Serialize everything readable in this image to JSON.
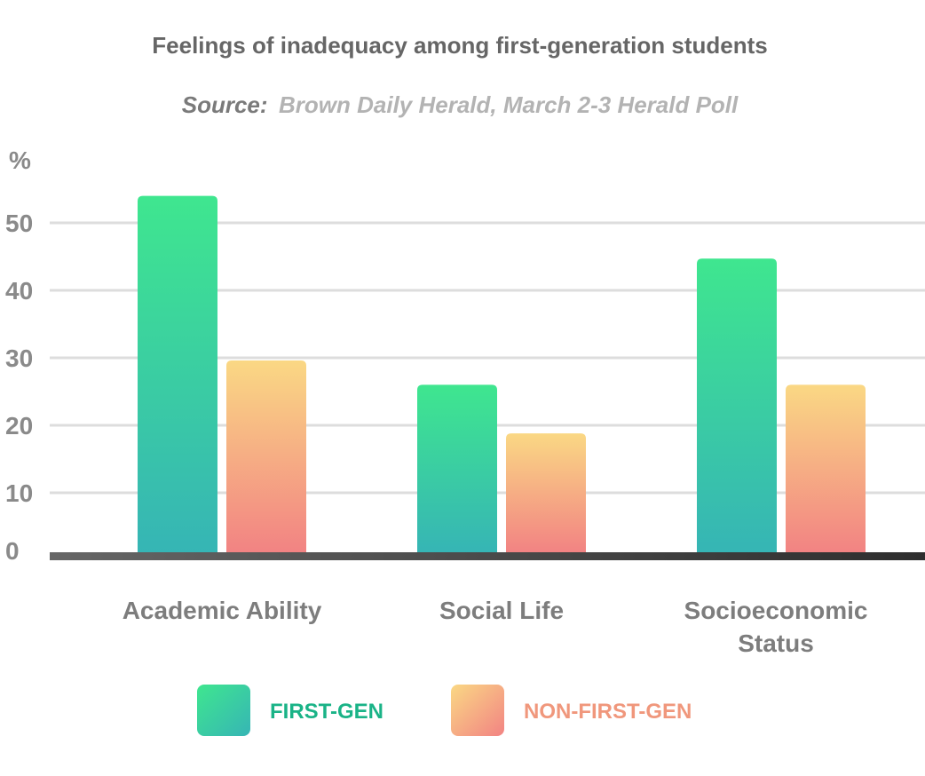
{
  "colors": {
    "first_gen_top": "#3fe68f",
    "first_gen_bottom": "#36b5b5",
    "non_first_gen_top": "#fad884",
    "non_first_gen_bottom": "#f28383",
    "first_gen_label": "#1ab387",
    "non_first_gen_label": "#f0977c",
    "grid": "#dddddd",
    "baseline": "#555555"
  },
  "chart_data": {
    "type": "bar",
    "title": "Feelings of inadequacy among first-generation students",
    "subtitle_label": "Source:",
    "subtitle_text": "Brown Daily Herald, March 2-3 Herald Poll",
    "ylabel": "%",
    "xlabel": "",
    "ylim": [
      0,
      55
    ],
    "yticks": [
      "0",
      "10",
      "20",
      "30",
      "40",
      "50"
    ],
    "grid": true,
    "legend_position": "bottom",
    "categories": [
      [
        "Academic Ability"
      ],
      [
        "Social Life"
      ],
      [
        "Socioeconomic",
        "Status"
      ]
    ],
    "series": [
      {
        "name": "FIRST-GEN",
        "values": [
          54,
          26,
          44.7
        ]
      },
      {
        "name": "NON-FIRST-GEN",
        "values": [
          29.6,
          18.8,
          26
        ]
      }
    ]
  }
}
